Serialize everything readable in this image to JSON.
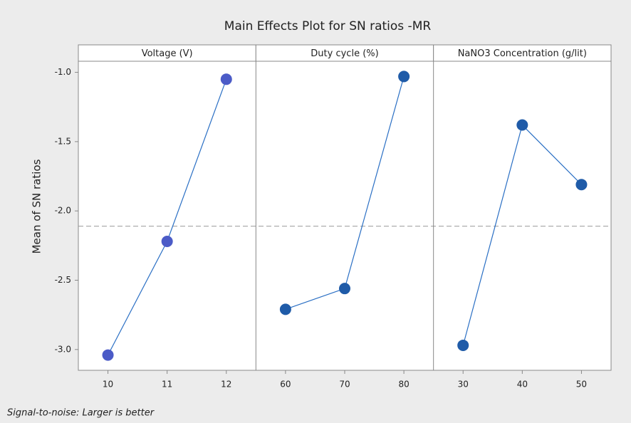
{
  "chart_data": {
    "type": "line",
    "title": "Main Effects Plot for SN ratios -MR",
    "ylabel": "Mean of SN ratios",
    "ylim": [
      -3.15,
      -0.92
    ],
    "yticks": [
      {
        "value": -3,
        "label": "-3.0"
      },
      -2.5,
      {
        "value": -2,
        "label": "-2.0"
      },
      -1.5,
      {
        "value": -1,
        "label": "-1.0"
      }
    ],
    "reference_line": -2.11,
    "footnote": "Signal-to-noise: Larger is better",
    "panels": [
      {
        "title": "Voltage (V)",
        "categories": [
          "10",
          "11",
          "12"
        ],
        "values": [
          -3.04,
          -2.22,
          -1.05
        ],
        "color": "#4b5bc7"
      },
      {
        "title": "Duty cycle (%)",
        "categories": [
          "60",
          "70",
          "80"
        ],
        "values": [
          -2.71,
          -2.56,
          -1.03
        ],
        "color": "#1f5ba8"
      },
      {
        "title": "NaNO3 Concentration (g/lit)",
        "categories": [
          "30",
          "40",
          "50"
        ],
        "values": [
          -2.97,
          -1.38,
          -1.81
        ],
        "color": "#1f5ba8"
      }
    ]
  }
}
